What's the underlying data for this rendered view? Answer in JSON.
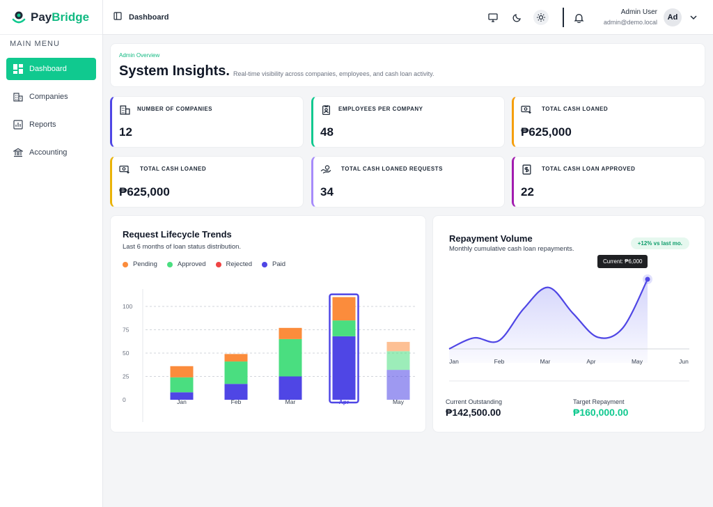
{
  "brand": {
    "name_main": "Pay",
    "name_accent": "Bridge"
  },
  "sidebar": {
    "menu_title": "MAIN MENU",
    "items": [
      {
        "label": "Dashboard",
        "icon": "dashboard-icon",
        "active": true
      },
      {
        "label": "Companies",
        "icon": "building-icon"
      },
      {
        "label": "Reports",
        "icon": "chart-icon"
      },
      {
        "label": "Accounting",
        "icon": "bank-icon"
      }
    ]
  },
  "topbar": {
    "page": "Dashboard",
    "user_name": "Admin User",
    "user_email": "admin@demo.local",
    "avatar": "Ad"
  },
  "header": {
    "overline": "Admin Overview",
    "title": "System Insights.",
    "subtitle": "Real-time visibility across companies, employees, and cash loan activity."
  },
  "stats": [
    {
      "label": "NUMBER OF COMPANIES",
      "value": "12",
      "color": "#4f46e5",
      "icon": "building-icon"
    },
    {
      "label": "EMPLOYEES PER COMPANY",
      "value": "48",
      "color": "#10c98f",
      "icon": "badge-icon"
    },
    {
      "label": "TOTAL CASH LOANED",
      "value": "₱625,000",
      "color": "#f59e0b",
      "icon": "cash-icon"
    },
    {
      "label": "TOTAL CASH LOANED",
      "value": "₱625,000",
      "color": "#eab308",
      "icon": "cash-icon"
    },
    {
      "label": "TOTAL CASH LOANED REQUESTS",
      "value": "34",
      "color": "#a78bfa",
      "icon": "hand-coin-icon"
    },
    {
      "label": "TOTAL CASH LOAN APPROVED",
      "value": "22",
      "color": "#a21caf",
      "icon": "dollar-receipt-icon"
    }
  ],
  "lifecycle": {
    "title": "Request Lifecycle Trends",
    "subtitle": "Last 6 months of loan status distribution.",
    "legend": [
      {
        "label": "Pending",
        "color": "#fb8c3c"
      },
      {
        "label": "Approved",
        "color": "#4ade80"
      },
      {
        "label": "Rejected",
        "color": "#ef4444"
      },
      {
        "label": "Paid",
        "color": "#4f46e5"
      }
    ]
  },
  "repayment": {
    "title": "Repayment Volume",
    "subtitle": "Monthly cumulative cash loan repayments.",
    "badge": "+12% vs last mo.",
    "tooltip": "Current: ₱6,000",
    "current_outstanding_label": "Current Outstanding",
    "current_outstanding_value": "₱142,500.00",
    "target_label": "Target Repayment",
    "target_value": "₱160,000.00"
  },
  "chart_data": [
    {
      "type": "bar",
      "title": "Request Lifecycle Trends",
      "categories": [
        "Jan",
        "Feb",
        "Mar",
        "Apr",
        "May"
      ],
      "highlighted_category": "Apr",
      "ylim": [
        0,
        100
      ],
      "yticks": [
        0,
        25,
        50,
        75,
        100
      ],
      "stacked": true,
      "grid": true,
      "series": [
        {
          "name": "Paid",
          "color": "#4f46e5",
          "values": [
            8,
            17,
            25,
            68,
            32
          ]
        },
        {
          "name": "Approved",
          "color": "#4ade80",
          "values": [
            16,
            24,
            40,
            17,
            20
          ]
        },
        {
          "name": "Rejected",
          "color": "#ef4444",
          "values": [
            0,
            0,
            0,
            0,
            0
          ]
        },
        {
          "name": "Pending",
          "color": "#fb8c3c",
          "values": [
            12,
            8,
            12,
            25,
            10
          ]
        }
      ],
      "faded_categories": [
        "May"
      ]
    },
    {
      "type": "area",
      "title": "Repayment Volume",
      "categories": [
        "Jan",
        "Feb",
        "Mar",
        "Apr",
        "May",
        "Jun"
      ],
      "x": [
        0,
        0.5,
        1,
        1.5,
        2,
        2.5,
        3,
        3.5,
        4
      ],
      "values": [
        0,
        950,
        700,
        3450,
        5300,
        3050,
        1000,
        1800,
        6000
      ],
      "ylim": [
        0,
        6000
      ],
      "current_point": {
        "x": 4,
        "y": 6000
      },
      "color": "#4f46e5"
    }
  ]
}
